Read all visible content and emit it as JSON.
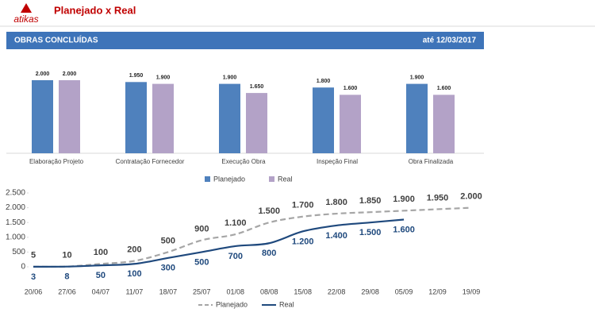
{
  "header": {
    "logo": "atikas",
    "title": "Planejado x Real"
  },
  "banner": {
    "title": "OBRAS CONCLUÍDAS",
    "date": "até 12/03/2017"
  },
  "chart_data": [
    {
      "type": "bar",
      "categories": [
        "Elaboração Projeto",
        "Contratação Fornecedor",
        "Execução Obra",
        "Inspeção Final",
        "Obra Finalizada"
      ],
      "series": [
        {
          "name": "Planejado",
          "color": "#4f81bd",
          "values": [
            2000,
            1950,
            1900,
            1800,
            1900
          ],
          "value_labels": [
            "2.000",
            "1.950",
            "1.900",
            "1.800",
            "1.900"
          ]
        },
        {
          "name": "Real",
          "color": "#b3a2c7",
          "values": [
            2000,
            1900,
            1650,
            1600,
            1600
          ],
          "value_labels": [
            "2.000",
            "1.900",
            "1.650",
            "1.600",
            "1.600"
          ]
        }
      ],
      "legend": "bottom"
    },
    {
      "type": "line",
      "categories": [
        "20/06",
        "27/06",
        "04/07",
        "11/07",
        "18/07",
        "25/07",
        "01/08",
        "08/08",
        "15/08",
        "22/08",
        "29/08",
        "05/09",
        "12/09",
        "19/09"
      ],
      "series": [
        {
          "name": "Planejado",
          "color": "#a6a6a6",
          "dashed": true,
          "label_color": "#404040",
          "label_position": "above",
          "values": [
            5,
            10,
            100,
            200,
            500,
            900,
            1100,
            1500,
            1700,
            1800,
            1850,
            1900,
            1950,
            2000
          ],
          "value_labels": [
            "5",
            "10",
            "100",
            "200",
            "500",
            "900",
            "1.100",
            "1.500",
            "1.700",
            "1.800",
            "1.850",
            "1.900",
            "1.950",
            "2.000"
          ]
        },
        {
          "name": "Real",
          "color": "#1f497d",
          "dashed": false,
          "label_color": "#1f497d",
          "label_position": "below",
          "values": [
            3,
            8,
            50,
            100,
            300,
            500,
            700,
            800,
            1200,
            1400,
            1500,
            1600,
            null,
            null
          ],
          "value_labels": [
            "3",
            "8",
            "50",
            "100",
            "300",
            "500",
            "700",
            "800",
            "1.200",
            "1.400",
            "1.500",
            "1.600",
            null,
            null
          ]
        }
      ],
      "ylim": [
        0,
        2500
      ],
      "yticks": [
        0,
        500,
        {
          "value": 1000,
          "label": "1.000"
        },
        {
          "value": 1500,
          "label": "1.500"
        },
        {
          "value": 2000,
          "label": "2.000"
        },
        {
          "value": 2500,
          "label": "2.500"
        }
      ],
      "grid": false,
      "legend": "bottom"
    }
  ]
}
